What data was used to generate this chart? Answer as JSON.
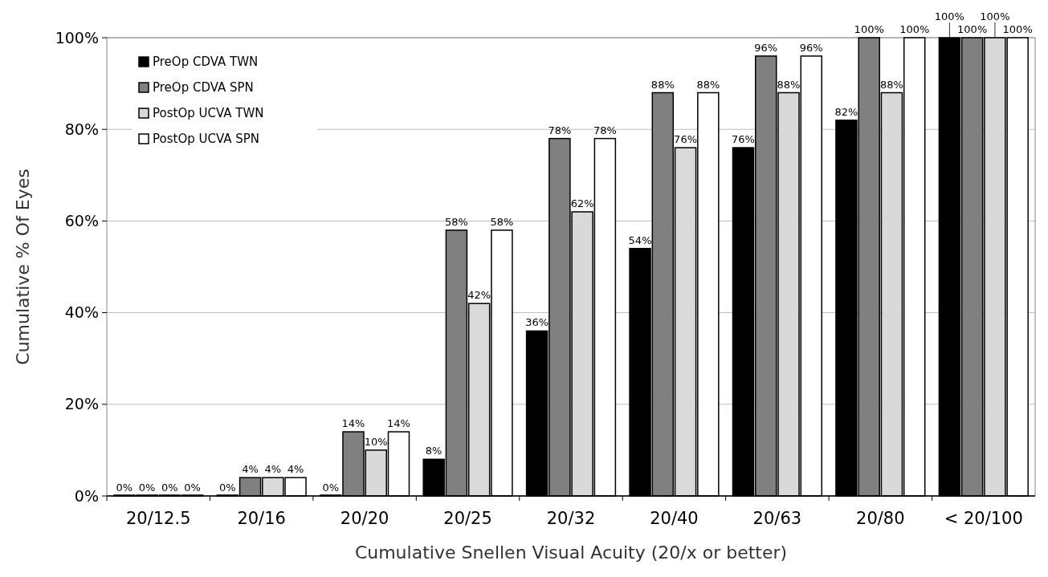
{
  "chart_data": {
    "type": "bar",
    "xlabel": "Cumulative Snellen Visual Acuity (20/x or better)",
    "ylabel": "Cumulative % Of Eyes",
    "categories": [
      "20/12.5",
      "20/16",
      "20/20",
      "20/25",
      "20/32",
      "20/40",
      "20/63",
      "20/80",
      "< 20/100"
    ],
    "series": [
      {
        "name": "PreOp CDVA TWN",
        "color": "#000000",
        "values": [
          0,
          0,
          0,
          8,
          36,
          54,
          76,
          82,
          100
        ],
        "value_labels": [
          "0%",
          "0%",
          "0%",
          "8%",
          "36%",
          "54%",
          "76%",
          "82%",
          "100%"
        ]
      },
      {
        "name": "PreOp CDVA SPN",
        "color": "#808080",
        "values": [
          0,
          4,
          14,
          58,
          78,
          88,
          96,
          100,
          100
        ],
        "value_labels": [
          "0%",
          "4%",
          "14%",
          "58%",
          "78%",
          "88%",
          "96%",
          "100%",
          "100%"
        ]
      },
      {
        "name": "PostOp UCVA TWN",
        "color": "#d9d9d9",
        "values": [
          0,
          4,
          10,
          42,
          62,
          76,
          88,
          88,
          100
        ],
        "value_labels": [
          "0%",
          "4%",
          "10%",
          "42%",
          "62%",
          "76%",
          "88%",
          "88%",
          "100%"
        ]
      },
      {
        "name": "PostOp UCVA SPN",
        "color": "#ffffff",
        "values": [
          0,
          4,
          14,
          58,
          78,
          88,
          96,
          100,
          100
        ],
        "value_labels": [
          "0%",
          "4%",
          "14%",
          "58%",
          "78%",
          "88%",
          "96%",
          "100%",
          "100%"
        ]
      }
    ],
    "ylim": [
      0,
      100
    ],
    "yticks": [
      {
        "value": 0,
        "label": "0%"
      },
      {
        "value": 20,
        "label": "20%"
      },
      {
        "value": 40,
        "label": "40%"
      },
      {
        "value": 60,
        "label": "60%"
      },
      {
        "value": 80,
        "label": "80%"
      },
      {
        "value": 100,
        "label": "100%"
      }
    ],
    "grid": "y",
    "legend": "top left"
  }
}
